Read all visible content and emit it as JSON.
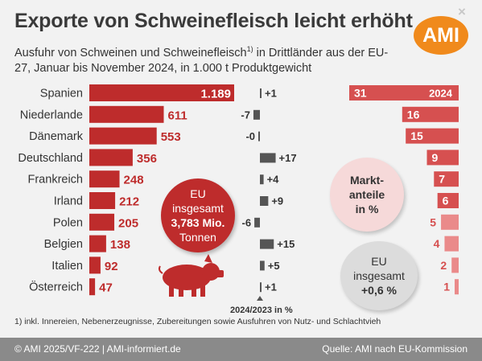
{
  "header": {
    "title": "Exporte von Schweinefleisch leicht erhöht",
    "subtitle": "Ausfuhr von Schweinen und Schweinefleisch",
    "subtitle_sup": "1)",
    "subtitle_cont": " in Drittländer aus der EU-27, Januar bis November 2024, in 1.000 t Produktgewicht",
    "logo": "AMI",
    "close_glyph": "×"
  },
  "chart_data": {
    "type": "bar",
    "categories": [
      "Spanien",
      "Niederlande",
      "Dänemark",
      "Deutschland",
      "Frankreich",
      "Irland",
      "Polen",
      "Belgien",
      "Italien",
      "Österreich"
    ],
    "series": [
      {
        "values": [
          1189,
          611,
          553,
          356,
          248,
          212,
          205,
          138,
          92,
          47
        ]
      },
      {
        "values": [
          1,
          -7,
          0,
          17,
          4,
          9,
          -6,
          15,
          5,
          1
        ]
      },
      {
        "values": [
          31,
          16,
          15,
          9,
          7,
          6,
          5,
          4,
          2,
          1
        ]
      }
    ],
    "value_labels": [
      "1.189",
      "611",
      "553",
      "356",
      "248",
      "212",
      "205",
      "138",
      "92",
      "47"
    ],
    "change_labels": [
      "+1",
      "-7",
      "-0",
      "+17",
      "+4",
      "+9",
      "-6",
      "+15",
      "+5",
      "+1"
    ],
    "share_year_label": "2024",
    "change_axis_label": "2024/2023 in %",
    "colors": {
      "volume": "#be2c2c",
      "share_dark": "#d65050",
      "share_light": "#ea8a8a",
      "change": "#555555"
    }
  },
  "bubbles": {
    "eu_total": {
      "line1": "EU",
      "line2": "insgesamt",
      "line3": "3,783 Mio.",
      "line4": "Tonnen"
    },
    "market_share": {
      "line1": "Markt-",
      "line2": "anteile",
      "line3": "in %"
    },
    "eu_change": {
      "line1": "EU",
      "line2": "insgesamt",
      "line3": "+0,6 %"
    }
  },
  "footnote": "1) inkl. Innereien, Nebenerzeugnisse, Zubereitungen sowie Ausfuhren von Nutz- und Schlachtvieh",
  "footer": {
    "left": "© AMI 2025/VF-222 | AMI-informiert.de",
    "right": "Quelle: AMI nach EU-Kommission"
  }
}
